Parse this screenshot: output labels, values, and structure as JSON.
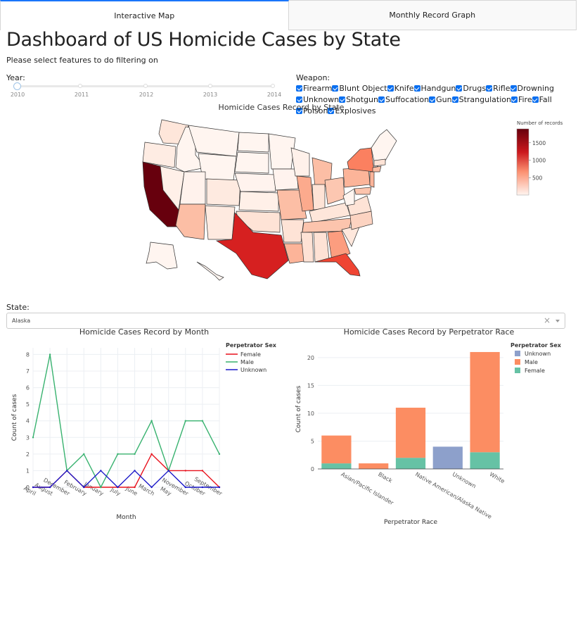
{
  "tabs": [
    {
      "label": "Interactive Map"
    },
    {
      "label": "Monthly Record Graph"
    }
  ],
  "header": {
    "title": "Dashboard of US Homicide Cases by State",
    "subtitle": "Please select features to do filtering on"
  },
  "filters": {
    "year_label": "Year:",
    "year_marks": [
      "2010",
      "2011",
      "2012",
      "2013",
      "2014"
    ],
    "year_selected": "2010",
    "weapon_label": "Weapon:",
    "weapons": [
      "Firearm",
      "Blunt Object",
      "Knife",
      "Handgun",
      "Drugs",
      "Rifle",
      "Drowning",
      "Unknown",
      "Shotgun",
      "Suffocation",
      "Gun",
      "Strangulation",
      "Fire",
      "Fall",
      "Poison",
      "Explosives"
    ],
    "state_label": "State:",
    "state_value": "Alaska",
    "clear_glyph": "×"
  },
  "map": {
    "title": "Homicide Cases Record by State",
    "colorbar_title": "Number of records",
    "colorbar_ticks": [
      "1500",
      "1000",
      "500"
    ],
    "colorbar_tick_values": [
      1500,
      1000,
      500
    ],
    "colorbar_max": 1900,
    "colors": {
      "low": "#fff5f0",
      "high": "#67000d"
    }
  },
  "chart_data": [
    {
      "type": "line",
      "title": "Homicide Cases Record by Month",
      "xlabel": "Month",
      "ylabel": "Count of cases",
      "legend_title": "Perpetrator Sex",
      "categories": [
        "April",
        "August",
        "December",
        "February",
        "January",
        "July",
        "June",
        "March",
        "May",
        "November",
        "October",
        "September"
      ],
      "ylim": [
        0,
        8.4
      ],
      "yticks": [
        0,
        1,
        2,
        3,
        4,
        5,
        6,
        7,
        8
      ],
      "grid": true,
      "legend_position": "top-right",
      "series": [
        {
          "name": "Female",
          "color": "#e8111c",
          "values": [
            0,
            0,
            1,
            0,
            0,
            0,
            0,
            2,
            1,
            1,
            1,
            0
          ]
        },
        {
          "name": "Male",
          "color": "#38b26f",
          "values": [
            3,
            8,
            1,
            2,
            0,
            2,
            2,
            4,
            1,
            4,
            4,
            2
          ]
        },
        {
          "name": "Unknown",
          "color": "#1a18c8",
          "values": [
            0,
            0,
            1,
            0,
            1,
            0,
            1,
            0,
            1,
            0,
            0,
            0
          ]
        }
      ]
    },
    {
      "type": "bar",
      "title": "Homicide Cases Record by Perpetrator Race",
      "xlabel": "Perpetrator Race",
      "ylabel": "Count of cases",
      "legend_title": "Perpetrator Sex",
      "categories": [
        "Asian/Pacific Islander",
        "Black",
        "Native American/Alaska Native",
        "Unknown",
        "White"
      ],
      "ylim": [
        0,
        21.5
      ],
      "yticks": [
        0,
        5,
        10,
        15,
        20
      ],
      "grid": true,
      "legend_position": "top-right",
      "series": [
        {
          "name": "Unknown",
          "color": "#8da0cb",
          "values": [
            0,
            0,
            0,
            4,
            0
          ]
        },
        {
          "name": "Male",
          "color": "#fc8d62",
          "values": [
            5,
            1,
            9,
            0,
            18
          ]
        },
        {
          "name": "Female",
          "color": "#66c2a5",
          "values": [
            1,
            0,
            2,
            0,
            3
          ]
        }
      ]
    }
  ]
}
